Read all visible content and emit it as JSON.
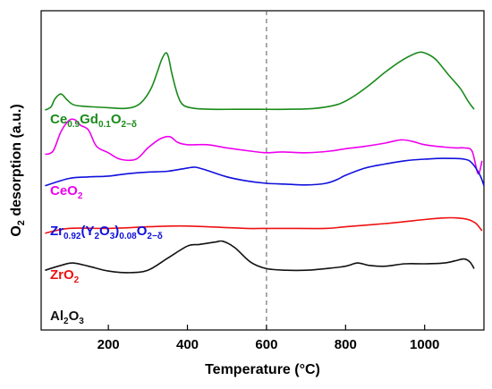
{
  "chart_data": {
    "type": "line",
    "xlabel": "Temperature (°C)",
    "ylabel": "O2 desorption (a.u.)",
    "xlim": [
      30,
      1150
    ],
    "x_ticks": [
      200,
      400,
      600,
      800,
      1000
    ],
    "y_ticks_shown": false,
    "reference_line_x": 600,
    "reference_line_style": "dashed",
    "series": [
      {
        "name": "Ce0.9Gd0.1O2-δ",
        "label_parts": [
          [
            "Ce",
            ""
          ],
          [
            "0.9",
            "sub"
          ],
          [
            "Gd",
            ""
          ],
          [
            "0.1",
            "sub"
          ],
          [
            "O",
            ""
          ],
          [
            "2−δ",
            "sub"
          ]
        ],
        "color": "#1a8a1a",
        "x": [
          40,
          55,
          65,
          80,
          95,
          110,
          130,
          160,
          200,
          240,
          270,
          290,
          310,
          325,
          335,
          345,
          352,
          360,
          375,
          390,
          420,
          460,
          520,
          580,
          650,
          720,
          780,
          820,
          860,
          900,
          940,
          970,
          990,
          1010,
          1030,
          1060,
          1090,
          1110,
          1125
        ],
        "y": [
          0.91,
          0.95,
          1.05,
          1.11,
          1.04,
          0.98,
          0.96,
          0.95,
          0.94,
          0.93,
          0.96,
          1.04,
          1.2,
          1.4,
          1.54,
          1.62,
          1.57,
          1.38,
          1.1,
          0.97,
          0.93,
          0.92,
          0.92,
          0.92,
          0.92,
          0.93,
          0.98,
          1.08,
          1.22,
          1.38,
          1.52,
          1.6,
          1.63,
          1.6,
          1.53,
          1.35,
          1.18,
          1.02,
          0.92
        ]
      },
      {
        "name": "CeO2",
        "label_parts": [
          [
            "CeO",
            ""
          ],
          [
            "2",
            "sub"
          ]
        ],
        "color": "#ee00ee",
        "x": [
          40,
          60,
          80,
          100,
          115,
          130,
          150,
          170,
          200,
          230,
          270,
          300,
          330,
          355,
          375,
          400,
          450,
          500,
          560,
          600,
          640,
          700,
          760,
          800,
          850,
          900,
          940,
          970,
          1000,
          1050,
          1080,
          1100,
          1120,
          1135,
          1145
        ],
        "y": [
          0.36,
          0.4,
          0.64,
          0.78,
          0.79,
          0.72,
          0.66,
          0.46,
          0.38,
          0.3,
          0.3,
          0.44,
          0.55,
          0.58,
          0.51,
          0.48,
          0.48,
          0.44,
          0.4,
          0.38,
          0.39,
          0.38,
          0.4,
          0.43,
          0.46,
          0.5,
          0.54,
          0.52,
          0.48,
          0.45,
          0.44,
          0.44,
          0.4,
          0.12,
          0.28
        ]
      },
      {
        "name": "Zr0.92(Y2O3)0.08O2-δ",
        "label_parts": [
          [
            "Zr",
            ""
          ],
          [
            "0.92",
            "sub"
          ],
          [
            "(Y",
            ""
          ],
          [
            "2",
            "sub"
          ],
          [
            "O",
            ""
          ],
          [
            "3",
            "sub"
          ],
          [
            ")",
            ""
          ],
          [
            "0.08",
            "sub"
          ],
          [
            "O",
            ""
          ],
          [
            "2−δ",
            "sub"
          ]
        ],
        "color": "#1010dd",
        "x": [
          40,
          100,
          150,
          200,
          250,
          300,
          350,
          400,
          420,
          450,
          500,
          550,
          600,
          650,
          700,
          750,
          780,
          800,
          850,
          900,
          950,
          1000,
          1050,
          1100,
          1120,
          1140,
          1150
        ],
        "y": [
          -0.03,
          0.06,
          0.08,
          0.09,
          0.12,
          0.14,
          0.15,
          0.19,
          0.2,
          0.16,
          0.08,
          0.03,
          0.0,
          -0.01,
          -0.02,
          0.0,
          0.05,
          0.1,
          0.19,
          0.24,
          0.28,
          0.3,
          0.31,
          0.3,
          0.25,
          0.1,
          -0.03
        ]
      },
      {
        "name": "ZrO2",
        "label_parts": [
          [
            "ZrO",
            ""
          ],
          [
            "2",
            "sub"
          ]
        ],
        "color": "#ee1111",
        "x": [
          40,
          100,
          200,
          300,
          380,
          450,
          550,
          600,
          650,
          750,
          800,
          900,
          1000,
          1050,
          1080,
          1110,
          1130,
          1145
        ],
        "y": [
          -0.62,
          -0.56,
          -0.56,
          -0.54,
          -0.53,
          -0.54,
          -0.56,
          -0.56,
          -0.56,
          -0.56,
          -0.54,
          -0.5,
          -0.45,
          -0.43,
          -0.43,
          -0.45,
          -0.5,
          -0.59
        ]
      },
      {
        "name": "Al2O3",
        "label_parts": [
          [
            "Al",
            ""
          ],
          [
            "2",
            "sub"
          ],
          [
            "O",
            ""
          ],
          [
            "3",
            "sub"
          ]
        ],
        "color": "#111111",
        "x": [
          40,
          80,
          110,
          150,
          200,
          250,
          300,
          350,
          400,
          430,
          470,
          490,
          520,
          560,
          600,
          650,
          700,
          750,
          800,
          830,
          860,
          900,
          950,
          1000,
          1050,
          1080,
          1100,
          1115,
          1125
        ],
        "y": [
          -1.08,
          -1.02,
          -0.99,
          -1.03,
          -1.09,
          -1.11,
          -1.08,
          -0.93,
          -0.78,
          -0.76,
          -0.73,
          -0.72,
          -0.8,
          -0.98,
          -1.06,
          -1.08,
          -1.08,
          -1.06,
          -1.03,
          -0.99,
          -1.02,
          -1.03,
          -1.0,
          -1.0,
          -0.99,
          -0.96,
          -0.94,
          -0.98,
          -1.06
        ]
      }
    ]
  }
}
